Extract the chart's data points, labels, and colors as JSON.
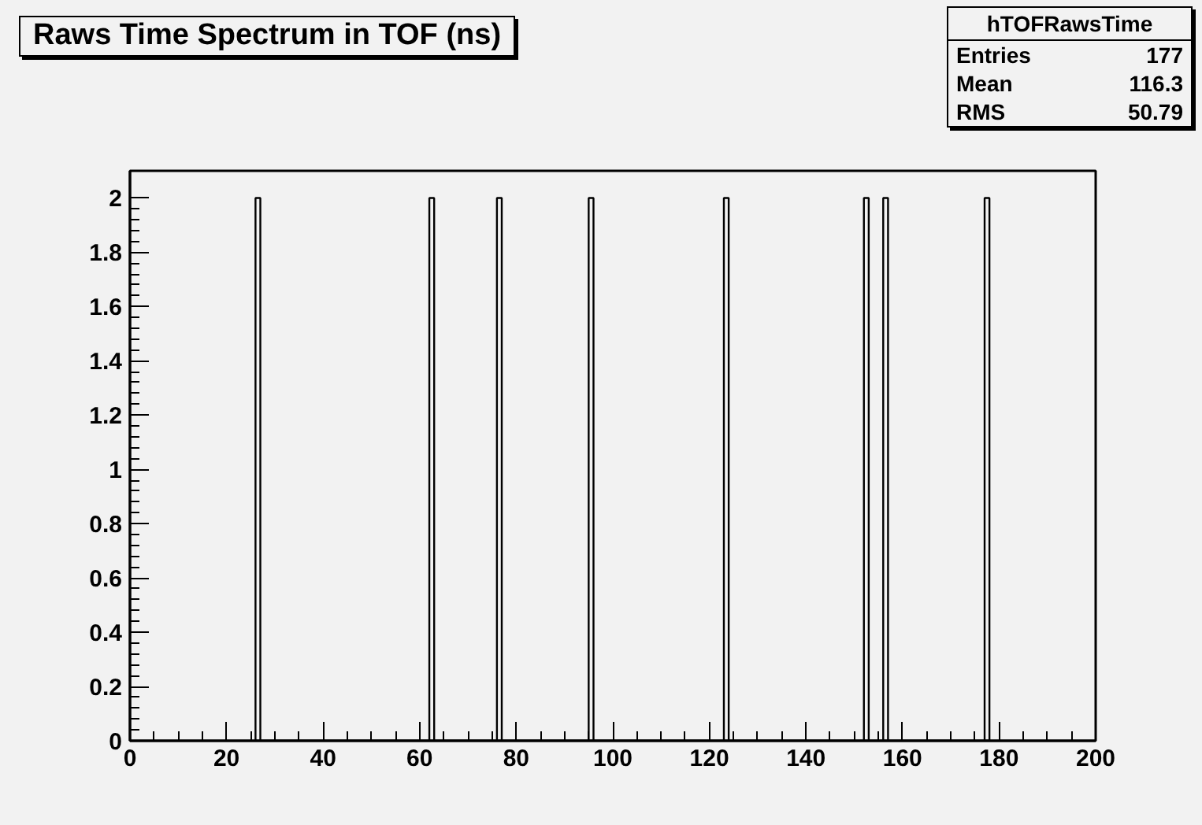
{
  "chart_data": {
    "type": "histogram",
    "title": "Raws Time Spectrum in TOF (ns)",
    "bins": [
      26,
      27,
      62,
      63,
      76,
      77,
      95,
      96,
      123,
      124,
      152,
      153,
      156,
      157,
      177,
      178
    ],
    "values": [
      2,
      0,
      2,
      0,
      2,
      0,
      2,
      0,
      2,
      0,
      2,
      0,
      2,
      0,
      2
    ],
    "color": "#000000",
    "xlim": [
      0,
      200
    ],
    "xticks": [
      0,
      20,
      40,
      60,
      80,
      100,
      120,
      140,
      160,
      180,
      200
    ],
    "ylim": [
      0,
      2.1
    ],
    "yticks": [
      0,
      0.2,
      0.4,
      0.6,
      0.8,
      1,
      1.2,
      1.4,
      1.6,
      1.8,
      2
    ],
    "grid": false,
    "annotations": [
      "hTOFRawsTime",
      "Entries",
      "177",
      "Mean",
      "116.3",
      "RMS",
      "50.79"
    ]
  }
}
